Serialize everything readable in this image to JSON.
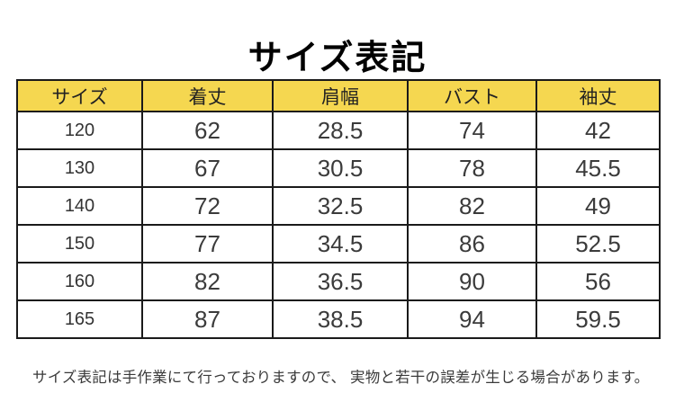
{
  "title": "サイズ表記",
  "chart_data": {
    "type": "table",
    "title": "サイズ表記",
    "columns": [
      "サイズ",
      "着丈",
      "肩幅",
      "バスト",
      "袖丈"
    ],
    "rows": [
      [
        "120",
        "62",
        "28.5",
        "74",
        "42"
      ],
      [
        "130",
        "67",
        "30.5",
        "78",
        "45.5"
      ],
      [
        "140",
        "72",
        "32.5",
        "82",
        "49"
      ],
      [
        "150",
        "77",
        "34.5",
        "86",
        "52.5"
      ],
      [
        "160",
        "82",
        "36.5",
        "90",
        "56"
      ],
      [
        "165",
        "87",
        "38.5",
        "94",
        "59.5"
      ]
    ],
    "header_bg_color": "#F5D750",
    "border_color": "#1A1A1A",
    "header_text_color": "#222222",
    "cell_text_color": "#3B3B3B",
    "legend_position": "none",
    "grid": true
  },
  "footnote": "サイズ表記は手作業にて行っておりますので、 実物と若干の誤差が生じる場合があります。"
}
